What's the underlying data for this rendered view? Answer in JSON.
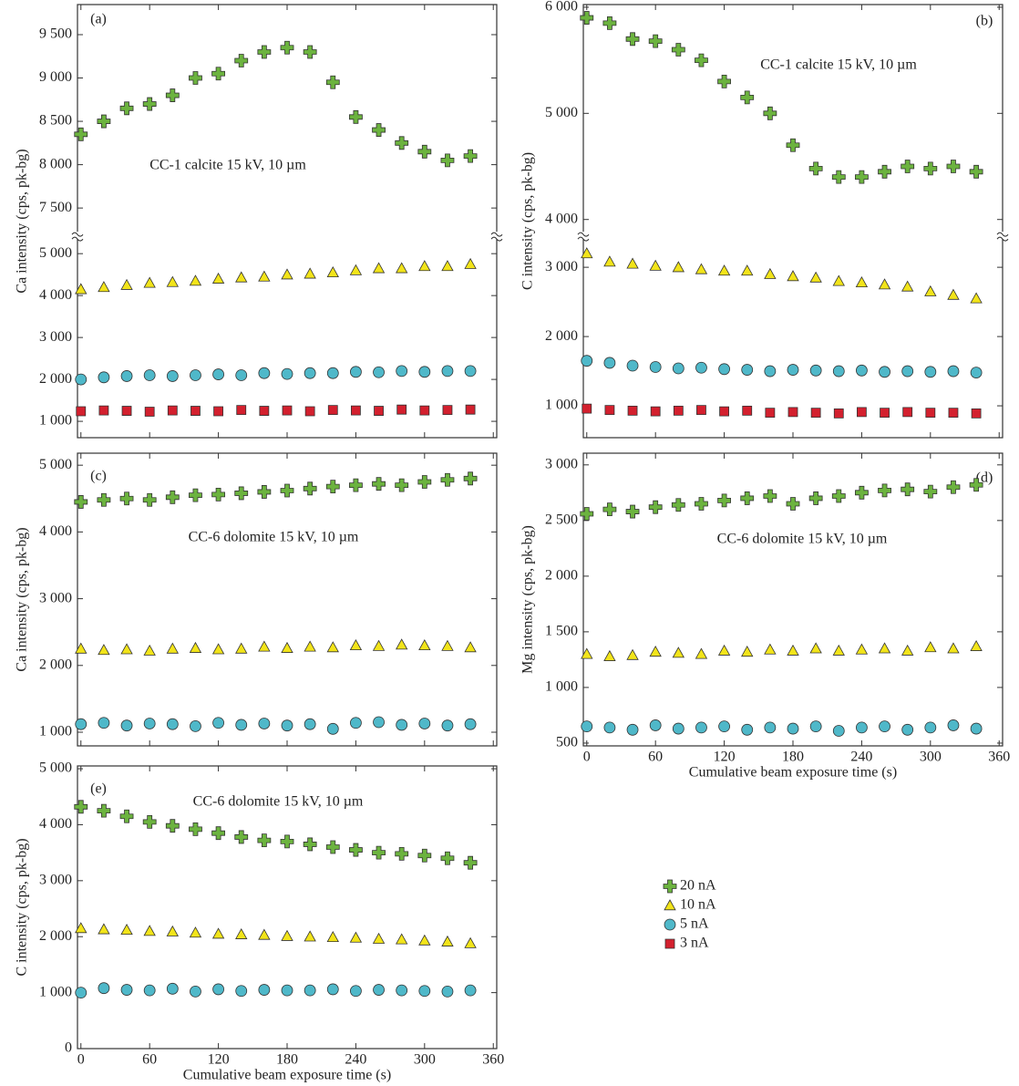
{
  "chart_data": [
    {
      "type": "scatter",
      "panel_label": "(a)",
      "annotation": "CC-1 calcite 15 kV, 10 µm",
      "ylabel": "Ca intensity (cps, pk-bg)",
      "x": [
        0,
        20,
        40,
        60,
        80,
        100,
        120,
        140,
        160,
        180,
        200,
        220,
        240,
        260,
        280,
        300,
        320,
        340
      ],
      "xlim": [
        -3,
        363
      ],
      "xticks": [
        0,
        60,
        120,
        180,
        240,
        300,
        360
      ],
      "ylim": [
        610,
        5435
      ],
      "yticks": [
        {
          "value": 1000,
          "label": "1 000"
        },
        {
          "value": 2000,
          "label": "2 000"
        },
        {
          "value": 3000,
          "label": "3 000"
        },
        {
          "value": 4000,
          "label": "4 000"
        },
        {
          "value": 5000,
          "label": "5 000"
        }
      ],
      "y_upper_lim": [
        7184,
        9847
      ],
      "y_upper_ticks": [
        {
          "value": 7500,
          "label": "7 500"
        },
        {
          "value": 8000,
          "label": "8 000"
        },
        {
          "value": 8500,
          "label": "8 500"
        },
        {
          "value": 9000,
          "label": "9 000"
        },
        {
          "value": 9500,
          "label": "9 500"
        }
      ],
      "series": [
        {
          "name": "20 nA",
          "marker": "plus",
          "color": "#6cb33f",
          "values": [
            8350,
            8500,
            8650,
            8700,
            8800,
            9000,
            9050,
            9200,
            9300,
            9350,
            9300,
            8950,
            8550,
            8400,
            8250,
            8150,
            8050,
            8100
          ]
        },
        {
          "name": "10 nA",
          "marker": "triangle",
          "color": "#f2e41a",
          "values": [
            4150,
            4200,
            4250,
            4300,
            4320,
            4350,
            4400,
            4430,
            4450,
            4500,
            4520,
            4550,
            4600,
            4650,
            4650,
            4700,
            4700,
            4750
          ]
        },
        {
          "name": "5 nA",
          "marker": "circle",
          "color": "#4fb8c9",
          "values": [
            2000,
            2050,
            2080,
            2100,
            2080,
            2100,
            2120,
            2100,
            2150,
            2130,
            2150,
            2150,
            2180,
            2170,
            2200,
            2180,
            2200,
            2200
          ]
        },
        {
          "name": "3 nA",
          "marker": "square",
          "color": "#d3202e",
          "values": [
            1240,
            1260,
            1250,
            1230,
            1260,
            1250,
            1240,
            1270,
            1250,
            1260,
            1240,
            1270,
            1260,
            1250,
            1280,
            1260,
            1270,
            1280
          ]
        }
      ]
    },
    {
      "type": "scatter",
      "panel_label": "(b)",
      "annotation": "CC-1 calcite 15 kV, 10 µm",
      "ylabel": "C intensity (cps, pk-bg)",
      "x": [
        0,
        20,
        40,
        60,
        80,
        100,
        120,
        140,
        160,
        180,
        200,
        220,
        240,
        260,
        280,
        300,
        320,
        340
      ],
      "xlim": [
        -3,
        363
      ],
      "xticks": [
        0,
        60,
        120,
        180,
        240,
        300,
        360
      ],
      "ylim": [
        540,
        3460
      ],
      "yticks": [
        {
          "value": 1000,
          "label": "1 000"
        },
        {
          "value": 2000,
          "label": "2 000"
        },
        {
          "value": 3000,
          "label": "3 000"
        }
      ],
      "y_upper_lim": [
        3850,
        6025
      ],
      "y_upper_ticks": [
        {
          "value": 4000,
          "label": "4 000"
        },
        {
          "value": 5000,
          "label": "5 000"
        },
        {
          "value": 6000,
          "label": "6 000"
        }
      ],
      "series": [
        {
          "marker": "plus",
          "color": "#6cb33f",
          "values": [
            5900,
            5850,
            5700,
            5680,
            5600,
            5500,
            5300,
            5150,
            5000,
            4700,
            4480,
            4400,
            4400,
            4450,
            4500,
            4480,
            4500,
            4450
          ]
        },
        {
          "marker": "triangle",
          "color": "#f2e41a",
          "values": [
            3200,
            3080,
            3050,
            3020,
            3000,
            2970,
            2950,
            2950,
            2900,
            2870,
            2850,
            2800,
            2780,
            2750,
            2720,
            2650,
            2600,
            2550
          ]
        },
        {
          "marker": "circle",
          "color": "#4fb8c9",
          "values": [
            1650,
            1620,
            1580,
            1560,
            1540,
            1550,
            1530,
            1520,
            1500,
            1520,
            1510,
            1500,
            1510,
            1490,
            1500,
            1490,
            1500,
            1480
          ]
        },
        {
          "marker": "square",
          "color": "#d3202e",
          "values": [
            960,
            940,
            930,
            920,
            930,
            940,
            920,
            930,
            900,
            910,
            900,
            890,
            910,
            900,
            910,
            900,
            900,
            890
          ]
        }
      ]
    },
    {
      "type": "scatter",
      "panel_label": "(c)",
      "annotation": "CC-6 dolomite 15 kV, 10 µm",
      "ylabel": "Ca intensity (cps, pk-bg)",
      "x": [
        0,
        20,
        40,
        60,
        80,
        100,
        120,
        140,
        160,
        180,
        200,
        220,
        240,
        260,
        280,
        300,
        320,
        340
      ],
      "xlim": [
        -3,
        363
      ],
      "xticks": [
        0,
        60,
        120,
        180,
        240,
        300,
        360
      ],
      "ylim": [
        795,
        5180
      ],
      "yticks": [
        {
          "value": 1000,
          "label": "1 000"
        },
        {
          "value": 2000,
          "label": "2 000"
        },
        {
          "value": 3000,
          "label": "3 000"
        },
        {
          "value": 4000,
          "label": "4 000"
        },
        {
          "value": 5000,
          "label": "5 000"
        }
      ],
      "series": [
        {
          "marker": "plus",
          "color": "#6cb33f",
          "values": [
            4450,
            4480,
            4500,
            4480,
            4520,
            4550,
            4560,
            4580,
            4600,
            4620,
            4650,
            4680,
            4700,
            4720,
            4700,
            4750,
            4780,
            4800
          ]
        },
        {
          "marker": "triangle",
          "color": "#f2e41a",
          "values": [
            2250,
            2230,
            2240,
            2220,
            2250,
            2260,
            2240,
            2250,
            2280,
            2260,
            2280,
            2270,
            2300,
            2290,
            2310,
            2300,
            2290,
            2270
          ]
        },
        {
          "marker": "circle",
          "color": "#4fb8c9",
          "values": [
            1120,
            1140,
            1100,
            1130,
            1120,
            1090,
            1140,
            1110,
            1130,
            1100,
            1120,
            1050,
            1140,
            1150,
            1110,
            1130,
            1100,
            1120
          ]
        }
      ]
    },
    {
      "type": "scatter",
      "panel_label": "(d)",
      "annotation": "CC-6 dolomite 15 kV, 10 µm",
      "ylabel": "Mg intensity (cps, pk-bg)",
      "xlabel": "Cumulative beam exposure time (s)",
      "x": [
        0,
        20,
        40,
        60,
        80,
        100,
        120,
        140,
        160,
        180,
        200,
        220,
        240,
        260,
        280,
        300,
        320,
        340
      ],
      "xlim": [
        -3,
        363
      ],
      "xticks": [
        0,
        60,
        120,
        180,
        240,
        300,
        360
      ],
      "ylim": [
        475,
        3105
      ],
      "yticks": [
        500,
        {
          "value": 1000,
          "label": "1 000"
        },
        {
          "value": 1500,
          "label": "1 500"
        },
        {
          "value": 2000,
          "label": "2 000"
        },
        {
          "value": 2500,
          "label": "2 500"
        },
        {
          "value": 3000,
          "label": "3 000"
        }
      ],
      "series": [
        {
          "marker": "plus",
          "color": "#6cb33f",
          "values": [
            2560,
            2600,
            2580,
            2620,
            2640,
            2650,
            2680,
            2700,
            2720,
            2650,
            2700,
            2720,
            2750,
            2770,
            2780,
            2760,
            2800,
            2820
          ]
        },
        {
          "marker": "triangle",
          "color": "#f2e41a",
          "values": [
            1300,
            1280,
            1290,
            1320,
            1310,
            1300,
            1330,
            1320,
            1340,
            1330,
            1350,
            1330,
            1340,
            1350,
            1330,
            1360,
            1350,
            1370
          ]
        },
        {
          "marker": "circle",
          "color": "#4fb8c9",
          "values": [
            650,
            640,
            620,
            660,
            630,
            640,
            650,
            620,
            640,
            630,
            650,
            610,
            640,
            650,
            620,
            640,
            660,
            630
          ]
        }
      ]
    },
    {
      "type": "scatter",
      "panel_label": "(e)",
      "annotation": "CC-6 dolomite 15 kV, 10 µm",
      "ylabel": "C intensity (cps, pk-bg)",
      "xlabel": "Cumulative beam exposure time (s)",
      "x": [
        0,
        20,
        40,
        60,
        80,
        100,
        120,
        140,
        160,
        180,
        200,
        220,
        240,
        260,
        280,
        300,
        320,
        340
      ],
      "xlim": [
        -3,
        363
      ],
      "xticks": [
        0,
        60,
        120,
        180,
        240,
        300,
        360
      ],
      "ylim": [
        0,
        5050
      ],
      "yticks": [
        0,
        {
          "value": 1000,
          "label": "1 000"
        },
        {
          "value": 2000,
          "label": "2 000"
        },
        {
          "value": 3000,
          "label": "3 000"
        },
        {
          "value": 4000,
          "label": "4 000"
        },
        {
          "value": 5000,
          "label": "5 000"
        }
      ],
      "series": [
        {
          "marker": "plus",
          "color": "#6cb33f",
          "values": [
            4320,
            4250,
            4150,
            4050,
            3980,
            3920,
            3850,
            3780,
            3720,
            3700,
            3650,
            3600,
            3550,
            3500,
            3480,
            3450,
            3400,
            3320
          ]
        },
        {
          "marker": "triangle",
          "color": "#f2e41a",
          "values": [
            2150,
            2130,
            2120,
            2100,
            2090,
            2070,
            2050,
            2040,
            2030,
            2010,
            2000,
            1990,
            1980,
            1960,
            1950,
            1930,
            1910,
            1880
          ]
        },
        {
          "marker": "circle",
          "color": "#4fb8c9",
          "values": [
            1000,
            1080,
            1050,
            1040,
            1070,
            1020,
            1060,
            1030,
            1050,
            1040,
            1040,
            1060,
            1030,
            1050,
            1040,
            1030,
            1020,
            1040
          ]
        }
      ]
    }
  ]
}
